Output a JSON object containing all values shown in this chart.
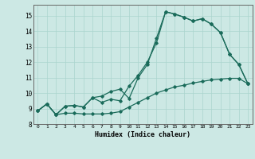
{
  "xlabel": "Humidex (Indice chaleur)",
  "xlim": [
    -0.5,
    23.5
  ],
  "ylim": [
    8.0,
    15.7
  ],
  "xticks": [
    0,
    1,
    2,
    3,
    4,
    5,
    6,
    7,
    8,
    9,
    10,
    11,
    12,
    13,
    14,
    15,
    16,
    17,
    18,
    19,
    20,
    21,
    22,
    23
  ],
  "yticks": [
    8,
    9,
    10,
    11,
    12,
    13,
    14,
    15
  ],
  "bg_color": "#cce8e4",
  "line_color": "#1a6b5a",
  "grid_color": "#aad4ce",
  "line1_x": [
    0,
    1,
    2,
    3,
    4,
    5,
    6,
    7,
    8,
    9,
    10,
    11,
    12,
    13,
    14,
    15,
    16,
    17,
    18,
    19,
    20,
    21,
    22,
    23
  ],
  "line1_y": [
    8.85,
    9.3,
    8.6,
    9.15,
    9.2,
    9.1,
    9.7,
    9.8,
    10.1,
    10.25,
    9.65,
    11.0,
    11.85,
    13.55,
    15.25,
    15.1,
    14.9,
    14.65,
    14.8,
    14.45,
    13.9,
    12.5,
    11.85,
    10.6
  ],
  "line2_x": [
    0,
    1,
    2,
    3,
    4,
    5,
    6,
    7,
    8,
    9,
    10,
    11,
    12,
    13,
    14,
    15,
    16,
    17,
    18,
    19,
    20,
    21,
    22,
    23
  ],
  "line2_y": [
    8.85,
    9.3,
    8.6,
    9.15,
    9.2,
    9.1,
    9.7,
    9.4,
    9.6,
    9.5,
    10.45,
    11.15,
    12.0,
    13.25,
    15.25,
    15.1,
    14.9,
    14.65,
    14.8,
    14.45,
    13.9,
    12.5,
    11.85,
    10.6
  ],
  "line3_x": [
    0,
    1,
    2,
    3,
    4,
    5,
    6,
    7,
    8,
    9,
    10,
    11,
    12,
    13,
    14,
    15,
    16,
    17,
    18,
    19,
    20,
    21,
    22,
    23
  ],
  "line3_y": [
    8.85,
    9.3,
    8.6,
    8.7,
    8.7,
    8.65,
    8.65,
    8.65,
    8.7,
    8.8,
    9.1,
    9.4,
    9.7,
    10.0,
    10.2,
    10.4,
    10.5,
    10.65,
    10.75,
    10.85,
    10.9,
    10.95,
    10.95,
    10.6
  ]
}
